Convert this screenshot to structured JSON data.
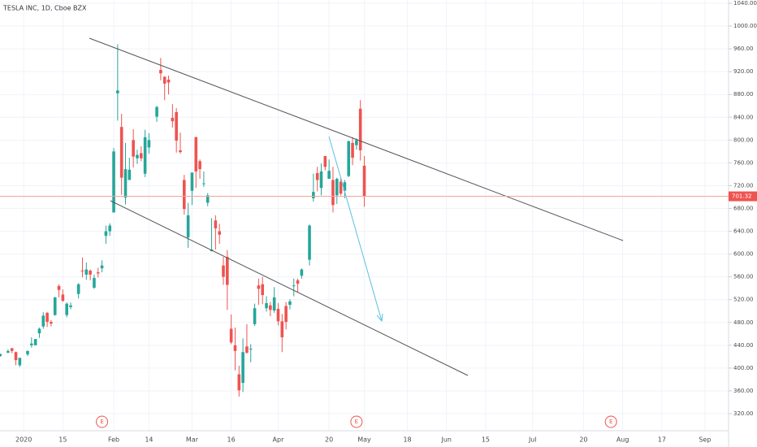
{
  "chart_data": {
    "type": "candlestick",
    "title": "TESLA INC, 1D, Cboe BZX",
    "x": [
      "2019-12-24",
      "2019-12-26",
      "2019-12-27",
      "2019-12-30",
      "2019-12-31",
      "2020-01-02",
      "2020-01-03",
      "2020-01-06",
      "2020-01-07",
      "2020-01-08",
      "2020-01-09",
      "2020-01-10",
      "2020-01-13",
      "2020-01-14",
      "2020-01-15",
      "2020-01-16",
      "2020-01-17",
      "2020-01-21",
      "2020-01-22",
      "2020-01-23",
      "2020-01-24",
      "2020-01-27",
      "2020-01-28",
      "2020-01-29",
      "2020-01-30",
      "2020-01-31",
      "2020-02-03",
      "2020-02-04",
      "2020-02-05",
      "2020-02-06",
      "2020-02-07",
      "2020-02-10",
      "2020-02-11",
      "2020-02-12",
      "2020-02-13",
      "2020-02-14",
      "2020-02-18",
      "2020-02-19",
      "2020-02-20",
      "2020-02-21",
      "2020-02-24",
      "2020-02-25",
      "2020-02-26",
      "2020-02-27",
      "2020-02-28",
      "2020-03-02",
      "2020-03-03",
      "2020-03-04",
      "2020-03-05",
      "2020-03-06",
      "2020-03-09",
      "2020-03-10",
      "2020-03-11",
      "2020-03-12",
      "2020-03-13",
      "2020-03-16",
      "2020-03-17",
      "2020-03-18",
      "2020-03-19",
      "2020-03-20",
      "2020-03-23",
      "2020-03-24",
      "2020-03-25",
      "2020-03-26",
      "2020-03-27",
      "2020-03-30",
      "2020-03-31",
      "2020-04-01",
      "2020-04-02",
      "2020-04-03",
      "2020-04-06",
      "2020-04-07",
      "2020-04-08",
      "2020-04-09",
      "2020-04-13",
      "2020-04-14",
      "2020-04-15",
      "2020-04-16",
      "2020-04-17",
      "2020-04-20",
      "2020-04-21",
      "2020-04-22",
      "2020-04-23",
      "2020-04-24",
      "2020-04-27",
      "2020-04-28",
      "2020-04-29",
      "2020-04-30",
      "2020-05-01"
    ],
    "open": [
      421,
      427,
      435,
      428,
      405,
      424,
      440,
      440,
      461,
      473,
      497,
      481,
      493,
      544,
      529,
      493,
      507,
      530,
      571,
      564,
      571,
      541,
      568,
      575,
      632,
      640,
      673,
      882,
      823,
      699,
      730,
      800,
      768,
      777,
      741,
      787,
      841,
      923,
      911,
      906,
      839,
      849,
      782,
      730,
      629,
      711,
      805,
      763,
      723,
      690,
      605,
      659,
      640,
      580,
      595,
      469,
      440,
      389,
      374,
      438,
      433,
      477,
      545,
      547,
      505,
      510,
      501,
      504,
      482,
      509,
      511,
      545,
      554,
      562,
      590,
      698,
      742,
      716,
      772,
      732,
      730,
      703,
      727,
      711,
      737,
      795,
      791,
      855,
      755
    ],
    "high": [
      425,
      433,
      435,
      429,
      418,
      431,
      454,
      451,
      471,
      498,
      498,
      484,
      525,
      547,
      538,
      515,
      515,
      549,
      594,
      585,
      573,
      564,
      576,
      589,
      650,
      654,
      786,
      968,
      846,
      795,
      769,
      819,
      783,
      789,
      818,
      812,
      860,
      944,
      912,
      913,
      863,
      856,
      813,
      739,
      690,
      743,
      806,
      766,
      745,
      707,
      663,
      668,
      653,
      595,
      607,
      494,
      471,
      404,
      452,
      477,
      442,
      513,
      557,
      560,
      526,
      516,
      542,
      514,
      495,
      516,
      521,
      557,
      557,
      575,
      652,
      741,
      753,
      759,
      772,
      766,
      753,
      734,
      734,
      730,
      799,
      805,
      803,
      870,
      772
    ],
    "low": [
      420,
      426,
      426,
      405,
      402,
      421,
      436,
      440,
      453,
      469,
      472,
      473,
      492,
      524,
      516,
      489,
      503,
      522,
      559,
      555,
      554,
      539,
      559,
      568,
      618,
      632,
      673,
      834,
      704,
      687,
      730,
      752,
      758,
      763,
      735,
      776,
      832,
      905,
      870,
      880,
      822,
      778,
      776,
      669,
      611,
      686,
      716,
      732,
      718,
      684,
      605,
      608,
      618,
      546,
      502,
      442,
      396,
      350,
      358,
      425,
      410,
      474,
      511,
      512,
      499,
      491,
      497,
      475,
      428,
      468,
      503,
      526,
      533,
      557,
      580,
      692,
      710,
      703,
      747,
      732,
      673,
      688,
      703,
      698,
      735,
      756,
      783,
      764,
      683
    ],
    "close": [
      425,
      430,
      430,
      414,
      418,
      430,
      443,
      451,
      469,
      492,
      481,
      478,
      524,
      537,
      518,
      513,
      510,
      547,
      570,
      573,
      564,
      558,
      566,
      580,
      640,
      650,
      780,
      887,
      734,
      749,
      748,
      771,
      774,
      768,
      805,
      800,
      858,
      917,
      899,
      901,
      833,
      799,
      779,
      679,
      668,
      743,
      745,
      749,
      724,
      703,
      608,
      645,
      634,
      560,
      546,
      445,
      430,
      361,
      428,
      427,
      434,
      505,
      539,
      528,
      514,
      502,
      524,
      482,
      454,
      481,
      517,
      545,
      548,
      573,
      650,
      709,
      730,
      745,
      753,
      746,
      686,
      732,
      706,
      726,
      798,
      769,
      800,
      782,
      702
    ],
    "up_color": "#26a69a",
    "down_color": "#ef5350",
    "ylim": [
      320,
      1040
    ],
    "yticks": [
      {
        "value": 320,
        "label": "320.00"
      },
      {
        "value": 360,
        "label": "360.00"
      },
      {
        "value": 400,
        "label": "400.00"
      },
      {
        "value": 440,
        "label": "440.00"
      },
      {
        "value": 480,
        "label": "480.00"
      },
      {
        "value": 520,
        "label": "520.00"
      },
      {
        "value": 560,
        "label": "560.00"
      },
      {
        "value": 600,
        "label": "600.00"
      },
      {
        "value": 640,
        "label": "640.00"
      },
      {
        "value": 680,
        "label": "680.00"
      },
      {
        "value": 720,
        "label": "720.00"
      },
      {
        "value": 760,
        "label": "760.00"
      },
      {
        "value": 800,
        "label": "800.00"
      },
      {
        "value": 840,
        "label": "840.00"
      },
      {
        "value": 880,
        "label": "880.00"
      },
      {
        "value": 920,
        "label": "920.00"
      },
      {
        "value": 960,
        "label": "960.00"
      },
      {
        "value": 1000,
        "label": "1000.00"
      },
      {
        "value": 1040,
        "label": "1040.00"
      }
    ],
    "xticks": [
      {
        "value": "2020-01-01",
        "label": "2020"
      },
      {
        "value": "2020-01-15",
        "label": "15"
      },
      {
        "value": "2020-02-03",
        "label": "Feb"
      },
      {
        "value": "2020-02-14",
        "label": "14"
      },
      {
        "value": "2020-03-02",
        "label": "Mar"
      },
      {
        "value": "2020-03-16",
        "label": "16"
      },
      {
        "value": "2020-04-01",
        "label": "Apr"
      },
      {
        "value": "2020-04-20",
        "label": "20"
      },
      {
        "value": "2020-05-01",
        "label": "May"
      },
      {
        "value": "2020-05-18",
        "label": "18"
      },
      {
        "value": "2020-06-01",
        "label": "Jun"
      },
      {
        "value": "2020-06-15",
        "label": "15"
      },
      {
        "value": "2020-07-01",
        "label": "Jul"
      },
      {
        "value": "2020-07-20",
        "label": "20"
      },
      {
        "value": "2020-08-03",
        "label": "Aug"
      },
      {
        "value": "2020-08-17",
        "label": "17"
      },
      {
        "value": "2020-09-01",
        "label": "Sep"
      }
    ],
    "current_price": 701.32,
    "earnings_markers": [
      {
        "date": "2020-01-29",
        "label": "E"
      },
      {
        "date": "2020-04-29",
        "label": "E"
      },
      {
        "date": "2020-07-29",
        "label": "E"
      }
    ],
    "grid": true
  }
}
